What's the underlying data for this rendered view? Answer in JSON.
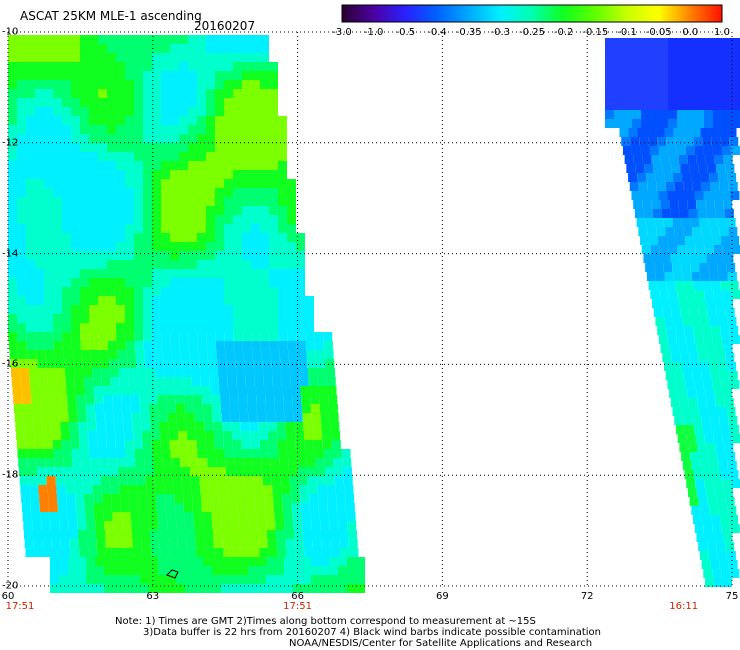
{
  "header": {
    "title": "ASCAT 25KM MLE-1 ascending",
    "date": "20160207"
  },
  "colorbar": {
    "tick_labels": [
      "-3.0",
      "-1.0",
      "-0.5",
      "-0.4",
      "-0.35",
      "-0.3",
      "-0.25",
      "-0.2",
      "-0.15",
      "-0.1",
      "-0.05",
      "0.0",
      "1.0"
    ],
    "colors": [
      "#2a0030",
      "#4c00a0",
      "#2a20ff",
      "#0060ff",
      "#00a8ff",
      "#00f0ff",
      "#00ffb0",
      "#10ff20",
      "#60ff00",
      "#c8ff00",
      "#ffff00",
      "#ff8000",
      "#ff1000"
    ]
  },
  "map": {
    "lat_labels": [
      "-10",
      "-12",
      "-14",
      "-16",
      "-18",
      "-20"
    ],
    "lon_labels": [
      "60",
      "63",
      "66",
      "69",
      "72",
      "75"
    ],
    "time_labels": [
      {
        "text": "17:51",
        "lon": 60
      },
      {
        "text": "17:51",
        "lon": 66
      },
      {
        "text": "16:11",
        "lon": 74
      }
    ],
    "lat_range": [
      -20,
      -10
    ],
    "lon_range": [
      60,
      75
    ],
    "grid": "dotted"
  },
  "notes": {
    "line1": "Note: 1) Times are GMT 2)Times along bottom correspond to measurement at ~15S",
    "line2": "3)Data buffer is 22 hrs from 20160207 4) Black wind barbs indicate possible contamination",
    "line3": "NOAA/NESDIS/Center for Satellite Applications and Research"
  }
}
